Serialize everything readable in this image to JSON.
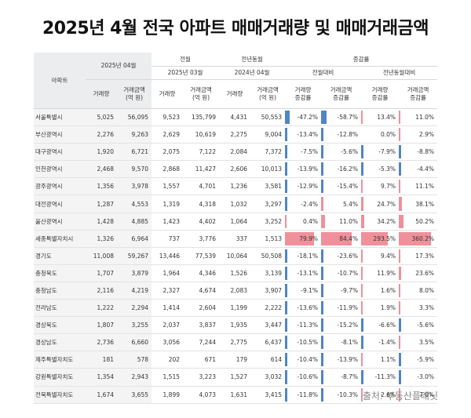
{
  "title": "2025년 4월 전국 아파트 매매거래량 및 매매거래금액",
  "source": "출처: 부동산플래닛",
  "headers": {
    "region": "아파트",
    "current": "2025년 04월",
    "prev_month": "전월",
    "prev_month_date": "2025년 03월",
    "prev_year": "전년동월",
    "prev_year_date": "2024년 04월",
    "change": "증감률",
    "mom": "전월대비",
    "yoy": "전년동월대비",
    "vol": "거래량",
    "amt": "거래금액\n(억 원)",
    "vol_rate": "거래량\n증감률",
    "amt_rate": "거래금액\n증감률"
  },
  "rows": [
    {
      "region": "서울특별시",
      "v25_04": "5,025",
      "a25_04": "56,095",
      "v25_03": "9,523",
      "a25_03": "135,799",
      "v24_04": "4,431",
      "a24_04": "50,553",
      "mom_v": "-47.2%",
      "mom_a": "-58.7%",
      "yoy_v": "13.4%",
      "yoy_a": "11.0%",
      "mom_v_n": -47.2,
      "mom_a_n": -58.7,
      "yoy_v_n": 13.4,
      "yoy_a_n": 11.0
    },
    {
      "region": "부산광역시",
      "v25_04": "2,276",
      "a25_04": "9,263",
      "v25_03": "2,629",
      "a25_03": "10,619",
      "v24_04": "2,275",
      "a24_04": "9,004",
      "mom_v": "-13.4%",
      "mom_a": "-12.8%",
      "yoy_v": "0.0%",
      "yoy_a": "2.9%",
      "mom_v_n": -13.4,
      "mom_a_n": -12.8,
      "yoy_v_n": 0.0,
      "yoy_a_n": 2.9
    },
    {
      "region": "대구광역시",
      "v25_04": "1,920",
      "a25_04": "6,721",
      "v25_03": "2,075",
      "a25_03": "7,122",
      "v24_04": "2,084",
      "a24_04": "7,372",
      "mom_v": "-7.5%",
      "mom_a": "-5.6%",
      "yoy_v": "-7.9%",
      "yoy_a": "-8.8%",
      "mom_v_n": -7.5,
      "mom_a_n": -5.6,
      "yoy_v_n": -7.9,
      "yoy_a_n": -8.8
    },
    {
      "region": "인천광역시",
      "v25_04": "2,468",
      "a25_04": "9,570",
      "v25_03": "2,868",
      "a25_03": "11,427",
      "v24_04": "2,606",
      "a24_04": "10,013",
      "mom_v": "-13.9%",
      "mom_a": "-16.2%",
      "yoy_v": "-5.3%",
      "yoy_a": "-4.4%",
      "mom_v_n": -13.9,
      "mom_a_n": -16.2,
      "yoy_v_n": -5.3,
      "yoy_a_n": -4.4
    },
    {
      "region": "광주광역시",
      "v25_04": "1,356",
      "a25_04": "3,978",
      "v25_03": "1,557",
      "a25_03": "4,701",
      "v24_04": "1,236",
      "a24_04": "3,581",
      "mom_v": "-12.9%",
      "mom_a": "-15.4%",
      "yoy_v": "9.7%",
      "yoy_a": "11.1%",
      "mom_v_n": -12.9,
      "mom_a_n": -15.4,
      "yoy_v_n": 9.7,
      "yoy_a_n": 11.1
    },
    {
      "region": "대전광역시",
      "v25_04": "1,287",
      "a25_04": "4,553",
      "v25_03": "1,319",
      "a25_03": "4,318",
      "v24_04": "1,032",
      "a24_04": "3,297",
      "mom_v": "-2.4%",
      "mom_a": "5.4%",
      "yoy_v": "24.7%",
      "yoy_a": "38.1%",
      "mom_v_n": -2.4,
      "mom_a_n": 5.4,
      "yoy_v_n": 24.7,
      "yoy_a_n": 38.1
    },
    {
      "region": "울산광역시",
      "v25_04": "1,428",
      "a25_04": "4,885",
      "v25_03": "1,423",
      "a25_03": "4,402",
      "v24_04": "1,064",
      "a24_04": "3,252",
      "mom_v": "0.4%",
      "mom_a": "11.0%",
      "yoy_v": "34.2%",
      "yoy_a": "50.2%",
      "mom_v_n": 0.4,
      "mom_a_n": 11.0,
      "yoy_v_n": 34.2,
      "yoy_a_n": 50.2
    },
    {
      "region": "세종특별자치시",
      "v25_04": "1,326",
      "a25_04": "6,964",
      "v25_03": "737",
      "a25_03": "3,776",
      "v24_04": "337",
      "a24_04": "1,513",
      "mom_v": "79.9%",
      "mom_a": "84.4%",
      "yoy_v": "293.5%",
      "yoy_a": "360.2%",
      "mom_v_n": 79.9,
      "mom_a_n": 84.4,
      "yoy_v_n": 293.5,
      "yoy_a_n": 360.2
    },
    {
      "region": "경기도",
      "v25_04": "11,008",
      "a25_04": "59,267",
      "v25_03": "13,446",
      "a25_03": "77,539",
      "v24_04": "10,064",
      "a24_04": "50,508",
      "mom_v": "-18.1%",
      "mom_a": "-23.6%",
      "yoy_v": "9.4%",
      "yoy_a": "17.3%",
      "mom_v_n": -18.1,
      "mom_a_n": -23.6,
      "yoy_v_n": 9.4,
      "yoy_a_n": 17.3
    },
    {
      "region": "충청북도",
      "v25_04": "1,707",
      "a25_04": "3,879",
      "v25_03": "1,964",
      "a25_03": "4,346",
      "v24_04": "1,526",
      "a24_04": "3,139",
      "mom_v": "-13.1%",
      "mom_a": "-10.7%",
      "yoy_v": "11.9%",
      "yoy_a": "23.6%",
      "mom_v_n": -13.1,
      "mom_a_n": -10.7,
      "yoy_v_n": 11.9,
      "yoy_a_n": 23.6
    },
    {
      "region": "충청남도",
      "v25_04": "2,116",
      "a25_04": "4,219",
      "v25_03": "2,327",
      "a25_03": "4,674",
      "v24_04": "2,083",
      "a24_04": "3,907",
      "mom_v": "-9.1%",
      "mom_a": "-9.7%",
      "yoy_v": "1.6%",
      "yoy_a": "8.0%",
      "mom_v_n": -9.1,
      "mom_a_n": -9.7,
      "yoy_v_n": 1.6,
      "yoy_a_n": 8.0
    },
    {
      "region": "전라남도",
      "v25_04": "1,222",
      "a25_04": "2,294",
      "v25_03": "1,414",
      "a25_03": "2,604",
      "v24_04": "1,199",
      "a24_04": "2,222",
      "mom_v": "-13.6%",
      "mom_a": "-11.9%",
      "yoy_v": "1.9%",
      "yoy_a": "3.3%",
      "mom_v_n": -13.6,
      "mom_a_n": -11.9,
      "yoy_v_n": 1.9,
      "yoy_a_n": 3.3
    },
    {
      "region": "경상북도",
      "v25_04": "1,807",
      "a25_04": "3,255",
      "v25_03": "2,037",
      "a25_03": "3,837",
      "v24_04": "1,935",
      "a24_04": "3,447",
      "mom_v": "-11.3%",
      "mom_a": "-15.2%",
      "yoy_v": "-6.6%",
      "yoy_a": "-5.6%",
      "mom_v_n": -11.3,
      "mom_a_n": -15.2,
      "yoy_v_n": -6.6,
      "yoy_a_n": -5.6
    },
    {
      "region": "경상남도",
      "v25_04": "2,736",
      "a25_04": "6,660",
      "v25_03": "3,056",
      "a25_03": "7,244",
      "v24_04": "2,775",
      "a24_04": "6,437",
      "mom_v": "-10.5%",
      "mom_a": "-8.1%",
      "yoy_v": "-1.4%",
      "yoy_a": "3.5%",
      "mom_v_n": -10.5,
      "mom_a_n": -8.1,
      "yoy_v_n": -1.4,
      "yoy_a_n": 3.5
    },
    {
      "region": "제주특별자치도",
      "v25_04": "181",
      "a25_04": "578",
      "v25_03": "202",
      "a25_03": "671",
      "v24_04": "179",
      "a24_04": "614",
      "mom_v": "-10.4%",
      "mom_a": "-13.9%",
      "yoy_v": "1.1%",
      "yoy_a": "-5.9%",
      "mom_v_n": -10.4,
      "mom_a_n": -13.9,
      "yoy_v_n": 1.1,
      "yoy_a_n": -5.9
    },
    {
      "region": "강원특별자치도",
      "v25_04": "1,354",
      "a25_04": "2,943",
      "v25_03": "1,515",
      "a25_03": "3,223",
      "v24_04": "1,527",
      "a24_04": "3,032",
      "mom_v": "-10.6%",
      "mom_a": "-8.7%",
      "yoy_v": "-11.3%",
      "yoy_a": "-3.0%",
      "mom_v_n": -10.6,
      "mom_a_n": -8.7,
      "yoy_v_n": -11.3,
      "yoy_a_n": -3.0
    },
    {
      "region": "전북특별자치도",
      "v25_04": "1,674",
      "a25_04": "3,655",
      "v25_03": "1,899",
      "a25_03": "4,073",
      "v24_04": "1,631",
      "a24_04": "3,415",
      "mom_v": "-11.8%",
      "mom_a": "-10.3%",
      "yoy_v": "2.6%",
      "yoy_a": "7.0%",
      "mom_v_n": -11.8,
      "mom_a_n": -10.3,
      "yoy_v_n": 2.6,
      "yoy_a_n": 7.0
    }
  ],
  "colors": {
    "negative": "#4f86c6",
    "positive": "#f0909b"
  }
}
